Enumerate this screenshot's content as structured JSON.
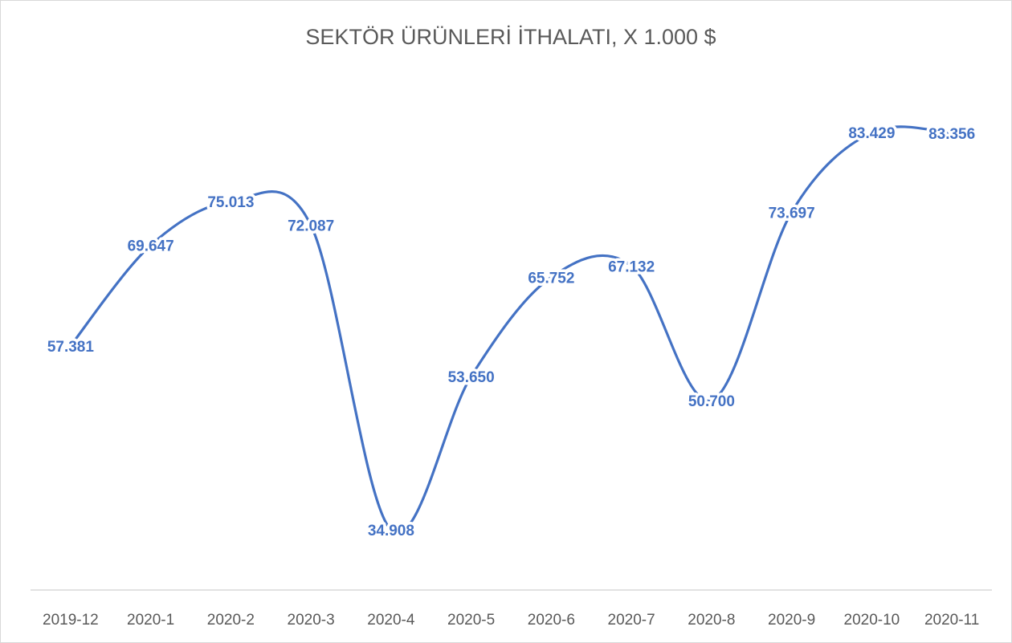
{
  "chart_data": {
    "type": "line",
    "title": "SEKTÖR ÜRÜNLERİ İTHALATI, X 1.000  $",
    "categories": [
      "2019-12",
      "2020-1",
      "2020-2",
      "2020-3",
      "2020-4",
      "2020-5",
      "2020-6",
      "2020-7",
      "2020-8",
      "2020-9",
      "2020-10",
      "2020-11"
    ],
    "values": [
      57381,
      69647,
      75013,
      72087,
      34908,
      53650,
      65752,
      67132,
      50700,
      73697,
      83429,
      83356
    ],
    "value_labels": [
      "57.381",
      "69.647",
      "75.013",
      "72.087",
      "34.908",
      "53.650",
      "65.752",
      "67.132",
      "50.700",
      "73.697",
      "83.429",
      "83.356"
    ],
    "color": "#4472c4",
    "smooth": true
  }
}
